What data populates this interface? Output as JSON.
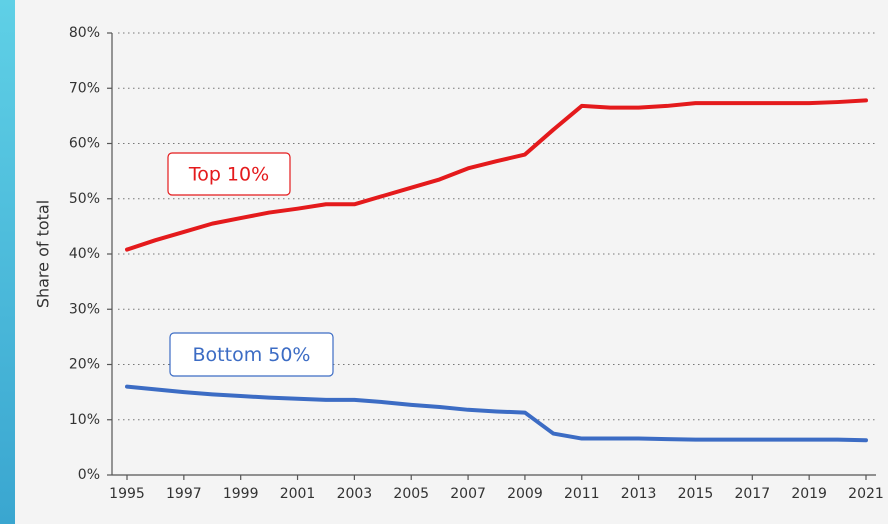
{
  "chart_data": {
    "type": "line",
    "y_label": "Share of total",
    "x": [
      1995,
      1996,
      1997,
      1998,
      1999,
      2000,
      2001,
      2002,
      2003,
      2004,
      2005,
      2006,
      2007,
      2008,
      2009,
      2010,
      2011,
      2012,
      2013,
      2014,
      2015,
      2016,
      2017,
      2018,
      2019,
      2020,
      2021
    ],
    "series": [
      {
        "name": "Top 10%",
        "color": "#e41a1c",
        "values": [
          40.8,
          42.5,
          44,
          45.5,
          46.5,
          47.5,
          48.2,
          49,
          49,
          50.5,
          52,
          53.5,
          55.5,
          56.8,
          58,
          62.5,
          66.8,
          66.5,
          66.5,
          66.8,
          67.3,
          67.3,
          67.3,
          67.3,
          67.3,
          67.5,
          67.8
        ]
      },
      {
        "name": "Bottom 50%",
        "color": "#3c6cc4",
        "values": [
          16,
          15.5,
          15,
          14.6,
          14.3,
          14,
          13.8,
          13.6,
          13.6,
          13.2,
          12.7,
          12.3,
          11.8,
          11.5,
          11.3,
          7.5,
          6.6,
          6.6,
          6.6,
          6.5,
          6.4,
          6.4,
          6.4,
          6.4,
          6.4,
          6.4,
          6.3
        ]
      }
    ],
    "xlim": [
      1995,
      2021
    ],
    "xticks": [
      1995,
      1997,
      1999,
      2001,
      2003,
      2005,
      2007,
      2009,
      2011,
      2013,
      2015,
      2017,
      2019,
      2021
    ],
    "ylim": [
      0,
      80
    ],
    "yticks": [
      {
        "value": 0,
        "label": "0%"
      },
      {
        "value": 10,
        "label": "10%"
      },
      {
        "value": 20,
        "label": "20%"
      },
      {
        "value": 30,
        "label": "30%"
      },
      {
        "value": 40,
        "label": "40%"
      },
      {
        "value": 50,
        "label": "50%"
      },
      {
        "value": 60,
        "label": "60%"
      },
      {
        "value": 70,
        "label": "70%"
      },
      {
        "value": 80,
        "label": "80%"
      }
    ],
    "grid": true
  }
}
